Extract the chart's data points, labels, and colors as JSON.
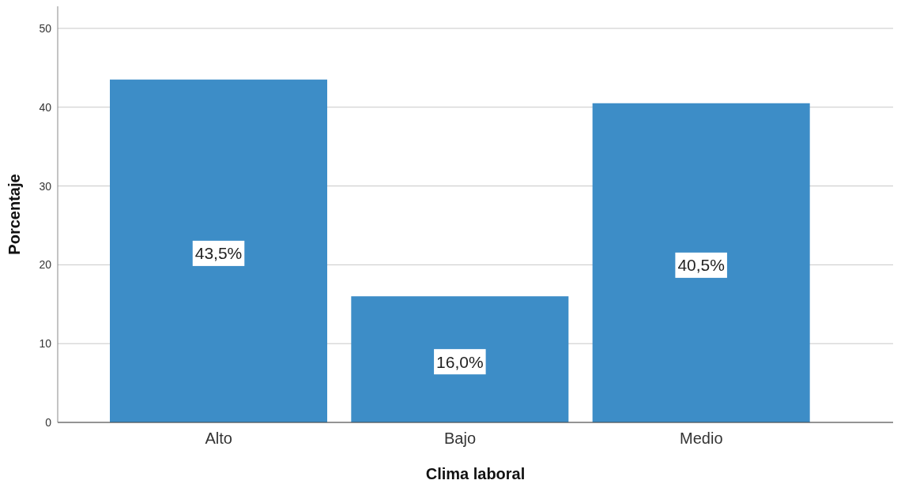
{
  "chart_data": {
    "type": "bar",
    "xlabel": "Clima laboral",
    "ylabel": "Porcentaje",
    "categories": [
      "Alto",
      "Bajo",
      "Medio"
    ],
    "values": [
      43.5,
      16.0,
      40.5
    ],
    "value_labels": [
      "43,5%",
      "16,0%",
      "40,5%"
    ],
    "color": "#3d8dc7",
    "ylim": [
      0,
      52.8
    ],
    "yticks": [
      0,
      10,
      20,
      30,
      40,
      50
    ],
    "grid": "y"
  }
}
